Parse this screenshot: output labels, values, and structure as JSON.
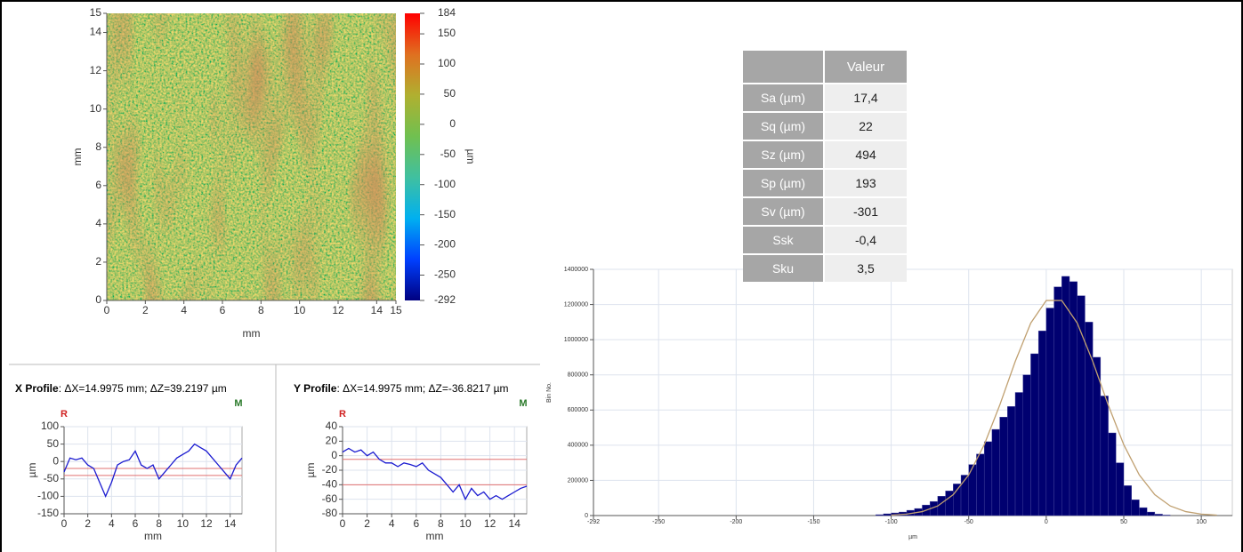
{
  "chart_data": [
    {
      "type": "heatmap",
      "xlabel": "mm",
      "ylabel": "mm",
      "xlim": [
        0,
        15
      ],
      "ylim": [
        0,
        15
      ],
      "xticks": [
        0,
        2,
        4,
        6,
        8,
        10,
        12,
        14,
        15
      ],
      "yticks": [
        0,
        2,
        4,
        6,
        8,
        10,
        12,
        14,
        15
      ],
      "colorbar": {
        "label": "µm",
        "lim": [
          -292,
          184
        ],
        "ticks": [
          184,
          150,
          100,
          50,
          0,
          -50,
          -100,
          -150,
          -200,
          -250,
          -292
        ],
        "colors": [
          "#000080",
          "#0040ff",
          "#00b0f0",
          "#40c0a0",
          "#70c050",
          "#b0b030",
          "#e07020",
          "#ff0000"
        ]
      }
    },
    {
      "type": "line",
      "title": "X Profile",
      "subtitle": ": ΔX=14.9975 mm; ΔZ=39.2197 µm",
      "annotations": [
        "R",
        "M"
      ],
      "xlabel": "mm",
      "ylabel": "µm",
      "xlim": [
        0,
        15
      ],
      "ylim": [
        -150,
        100
      ],
      "xticks": [
        0,
        2,
        4,
        6,
        8,
        10,
        12,
        14
      ],
      "yticks": [
        -150,
        -100,
        -50,
        0,
        50,
        100
      ],
      "grid": true,
      "color": "#1a1ad0",
      "x": [
        0,
        0.5,
        1,
        1.5,
        2,
        2.5,
        3,
        3.5,
        4,
        4.5,
        5,
        5.5,
        6,
        6.5,
        7,
        7.5,
        8,
        8.5,
        9,
        9.5,
        10,
        10.5,
        11,
        11.5,
        12,
        12.5,
        13,
        13.5,
        14,
        14.5,
        15
      ],
      "values": [
        -30,
        10,
        5,
        10,
        -10,
        -20,
        -60,
        -100,
        -60,
        -10,
        0,
        5,
        30,
        -10,
        -20,
        -10,
        -50,
        -30,
        -10,
        10,
        20,
        30,
        50,
        40,
        30,
        10,
        -10,
        -30,
        -50,
        -10,
        10
      ],
      "ref_lines": {
        "color": "#e07070",
        "values": [
          -20,
          -40
        ]
      }
    },
    {
      "type": "line",
      "title": "Y Profile",
      "subtitle": ": ΔX=14.9975 mm; ΔZ=-36.8217 µm",
      "annotations": [
        "R",
        "M"
      ],
      "xlabel": "mm",
      "ylabel": "µm",
      "xlim": [
        0,
        15
      ],
      "ylim": [
        -80,
        40
      ],
      "xticks": [
        0,
        2,
        4,
        6,
        8,
        10,
        12,
        14
      ],
      "yticks": [
        -80,
        -60,
        -40,
        -20,
        0,
        20,
        40
      ],
      "grid": true,
      "color": "#1a1ad0",
      "x": [
        0,
        0.5,
        1,
        1.5,
        2,
        2.5,
        3,
        3.5,
        4,
        4.5,
        5,
        5.5,
        6,
        6.5,
        7,
        7.5,
        8,
        8.5,
        9,
        9.5,
        10,
        10.5,
        11,
        11.5,
        12,
        12.5,
        13,
        13.5,
        14,
        14.5,
        15
      ],
      "values": [
        5,
        10,
        5,
        8,
        0,
        5,
        -5,
        -10,
        -10,
        -15,
        -10,
        -12,
        -15,
        -10,
        -20,
        -25,
        -30,
        -40,
        -50,
        -40,
        -60,
        -45,
        -55,
        -50,
        -60,
        -55,
        -60,
        -55,
        -50,
        -45,
        -42
      ],
      "ref_lines": {
        "color": "#e07070",
        "values": [
          -5,
          -40
        ]
      }
    },
    {
      "type": "histogram",
      "xlabel": "µm",
      "ylabel": "Bin No.",
      "color": "#000070",
      "grid": true,
      "xlim": [
        -292,
        120
      ],
      "ylim": [
        0,
        1400000
      ],
      "xticks": [
        -292,
        -250,
        -200,
        -150,
        -100,
        -50,
        0,
        50,
        100
      ],
      "yticks": [
        0,
        200000,
        400000,
        600000,
        800000,
        1000000,
        1200000,
        1400000
      ],
      "bins": [
        -110,
        -105,
        -100,
        -95,
        -90,
        -85,
        -80,
        -75,
        -70,
        -65,
        -60,
        -55,
        -50,
        -45,
        -40,
        -35,
        -30,
        -25,
        -20,
        -15,
        -10,
        -5,
        0,
        5,
        10,
        15,
        20,
        25,
        30,
        35,
        40,
        45,
        50,
        55,
        60,
        65,
        70,
        75,
        80
      ],
      "values": [
        5000,
        10000,
        15000,
        20000,
        30000,
        40000,
        60000,
        80000,
        110000,
        140000,
        180000,
        230000,
        290000,
        350000,
        420000,
        490000,
        560000,
        620000,
        700000,
        800000,
        920000,
        1050000,
        1180000,
        1300000,
        1360000,
        1330000,
        1250000,
        1100000,
        900000,
        680000,
        470000,
        300000,
        170000,
        90000,
        45000,
        20000,
        8000,
        3000
      ],
      "fit": {
        "color": "#c0a070",
        "x": [
          -100,
          -90,
          -80,
          -70,
          -60,
          -50,
          -40,
          -30,
          -20,
          -10,
          0,
          10,
          20,
          30,
          40,
          50,
          60,
          70,
          80,
          90,
          100,
          110
        ],
        "values": [
          2700,
          8300,
          22400,
          54500,
          118500,
          230800,
          402600,
          627800,
          876200,
          1094300,
          1222800,
          1222800,
          1094300,
          876200,
          627800,
          402600,
          230800,
          118500,
          54500,
          22400,
          8300,
          2700
        ]
      }
    }
  ],
  "table": {
    "header": [
      "Valeur"
    ],
    "rows": [
      [
        "Sa (µm)",
        "17,4"
      ],
      [
        "Sq (µm)",
        "22"
      ],
      [
        "Sz (µm)",
        "494"
      ],
      [
        "Sp (µm)",
        "193"
      ],
      [
        "Sv (µm)",
        "-301"
      ],
      [
        "Ssk",
        "-0,4"
      ],
      [
        "Sku",
        "3,5"
      ]
    ]
  }
}
